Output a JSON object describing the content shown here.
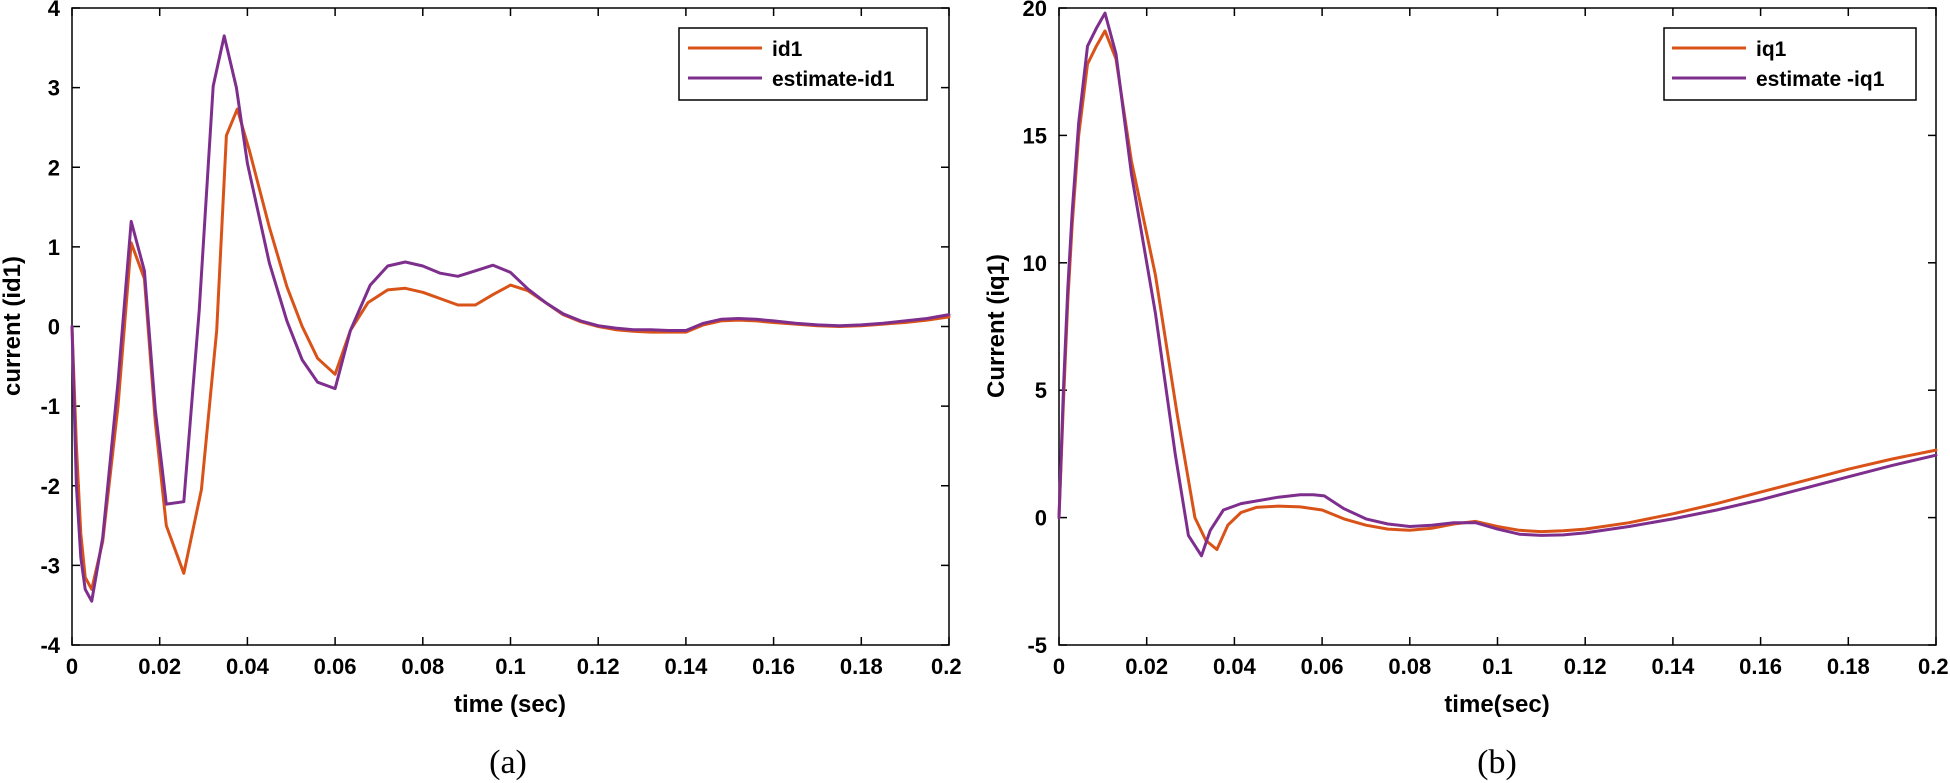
{
  "chart_data": [
    {
      "type": "line",
      "caption": "(a)",
      "xlabel": "time (sec)",
      "ylabel": "current (id1)",
      "xlim": [
        0,
        0.2
      ],
      "ylim": [
        -4,
        4
      ],
      "xticks": [
        0,
        0.02,
        0.04,
        0.06,
        0.08,
        0.1,
        0.12,
        0.14,
        0.16,
        0.18,
        0.2
      ],
      "xtick_labels": [
        "0",
        "0.02",
        "0.04",
        "0.06",
        "0.08",
        "0.1",
        "0.12",
        "0.14",
        "0.16",
        "0.18",
        "0.2"
      ],
      "yticks": [
        -4,
        -3,
        -2,
        -1,
        0,
        1,
        2,
        3,
        4
      ],
      "ytick_labels": [
        "-4",
        "-3",
        "-2",
        "-1",
        "0",
        "1",
        "2",
        "3",
        "4"
      ],
      "legend_position": "top-right",
      "series": [
        {
          "name": "id1",
          "color": "#D95319",
          "x": [
            0,
            0.001,
            0.002,
            0.003,
            0.0045,
            0.007,
            0.0105,
            0.0135,
            0.0165,
            0.019,
            0.0215,
            0.0255,
            0.0295,
            0.033,
            0.0352,
            0.0377,
            0.0405,
            0.045,
            0.049,
            0.0525,
            0.056,
            0.06,
            0.0635,
            0.0675,
            0.072,
            0.076,
            0.08,
            0.084,
            0.088,
            0.092,
            0.096,
            0.1,
            0.104,
            0.108,
            0.112,
            0.116,
            0.12,
            0.124,
            0.128,
            0.132,
            0.136,
            0.14,
            0.144,
            0.148,
            0.152,
            0.156,
            0.16,
            0.165,
            0.17,
            0.175,
            0.18,
            0.185,
            0.19,
            0.195,
            0.2
          ],
          "y": [
            0,
            -1.5,
            -2.6,
            -3.15,
            -3.3,
            -2.7,
            -1.0,
            1.05,
            0.6,
            -1.2,
            -2.5,
            -3.1,
            -2.05,
            -0.05,
            2.4,
            2.73,
            2.2,
            1.25,
            0.5,
            0.0,
            -0.4,
            -0.6,
            -0.05,
            0.3,
            0.46,
            0.48,
            0.43,
            0.35,
            0.27,
            0.27,
            0.4,
            0.52,
            0.45,
            0.3,
            0.15,
            0.06,
            0.0,
            -0.04,
            -0.06,
            -0.07,
            -0.07,
            -0.07,
            0.02,
            0.07,
            0.08,
            0.07,
            0.05,
            0.03,
            0.01,
            0.0,
            0.01,
            0.03,
            0.05,
            0.08,
            0.12
          ]
        },
        {
          "name": "estimate-id1",
          "color": "#7E2F8E",
          "x": [
            0,
            0.001,
            0.002,
            0.003,
            0.0045,
            0.007,
            0.0105,
            0.0135,
            0.0165,
            0.019,
            0.0215,
            0.0255,
            0.029,
            0.0322,
            0.0347,
            0.0375,
            0.04,
            0.045,
            0.049,
            0.0525,
            0.056,
            0.06,
            0.0635,
            0.068,
            0.072,
            0.076,
            0.08,
            0.084,
            0.088,
            0.092,
            0.096,
            0.1,
            0.104,
            0.108,
            0.112,
            0.116,
            0.12,
            0.124,
            0.128,
            0.132,
            0.136,
            0.14,
            0.144,
            0.148,
            0.152,
            0.156,
            0.16,
            0.165,
            0.17,
            0.175,
            0.18,
            0.185,
            0.19,
            0.195,
            0.2
          ],
          "y": [
            0,
            -2.0,
            -2.9,
            -3.3,
            -3.45,
            -2.65,
            -0.7,
            1.32,
            0.7,
            -1.05,
            -2.23,
            -2.2,
            0.2,
            3.02,
            3.65,
            3.0,
            2.05,
            0.8,
            0.07,
            -0.42,
            -0.7,
            -0.78,
            -0.05,
            0.52,
            0.76,
            0.81,
            0.76,
            0.67,
            0.63,
            0.7,
            0.77,
            0.68,
            0.47,
            0.3,
            0.16,
            0.07,
            0.01,
            -0.02,
            -0.04,
            -0.04,
            -0.05,
            -0.05,
            0.04,
            0.09,
            0.1,
            0.09,
            0.07,
            0.04,
            0.02,
            0.01,
            0.02,
            0.04,
            0.07,
            0.1,
            0.15
          ]
        }
      ]
    },
    {
      "type": "line",
      "caption": "(b)",
      "xlabel": "time(sec)",
      "ylabel": "Current (iq1)",
      "xlim": [
        0,
        0.2
      ],
      "ylim": [
        -5,
        20
      ],
      "xticks": [
        0,
        0.02,
        0.04,
        0.06,
        0.08,
        0.1,
        0.12,
        0.14,
        0.16,
        0.18,
        0.2
      ],
      "xtick_labels": [
        "0",
        "0.02",
        "0.04",
        "0.06",
        "0.08",
        "0.1",
        "0.12",
        "0.14",
        "0.16",
        "0.18",
        "0.2"
      ],
      "yticks": [
        -5,
        0,
        5,
        10,
        15,
        20
      ],
      "ytick_labels": [
        "-5",
        "0",
        "5",
        "10",
        "15",
        "20"
      ],
      "legend_position": "top-right",
      "series": [
        {
          "name": "iq1",
          "color": "#D95319",
          "x": [
            0,
            0.001,
            0.002,
            0.003,
            0.0045,
            0.0065,
            0.0085,
            0.0105,
            0.013,
            0.0165,
            0.022,
            0.027,
            0.031,
            0.0335,
            0.036,
            0.0385,
            0.0415,
            0.045,
            0.05,
            0.055,
            0.06,
            0.065,
            0.07,
            0.075,
            0.08,
            0.085,
            0.09,
            0.095,
            0.1,
            0.105,
            0.11,
            0.115,
            0.12,
            0.13,
            0.14,
            0.15,
            0.16,
            0.17,
            0.18,
            0.19,
            0.2
          ],
          "y": [
            0,
            4.5,
            8.5,
            11.5,
            15.0,
            17.8,
            18.5,
            19.1,
            18.0,
            14.0,
            9.5,
            4.0,
            0.0,
            -0.9,
            -1.25,
            -0.3,
            0.2,
            0.4,
            0.45,
            0.42,
            0.3,
            -0.05,
            -0.3,
            -0.45,
            -0.5,
            -0.42,
            -0.25,
            -0.15,
            -0.35,
            -0.5,
            -0.55,
            -0.52,
            -0.45,
            -0.2,
            0.15,
            0.55,
            1.0,
            1.45,
            1.9,
            2.3,
            2.65
          ]
        },
        {
          "name": "estimate -iq1",
          "color": "#7E2F8E",
          "x": [
            0,
            0.001,
            0.002,
            0.003,
            0.0045,
            0.0065,
            0.0085,
            0.0105,
            0.013,
            0.0165,
            0.022,
            0.0265,
            0.0295,
            0.0325,
            0.0345,
            0.0375,
            0.0415,
            0.045,
            0.05,
            0.055,
            0.058,
            0.0605,
            0.065,
            0.07,
            0.075,
            0.08,
            0.085,
            0.09,
            0.095,
            0.1,
            0.105,
            0.11,
            0.115,
            0.12,
            0.13,
            0.14,
            0.15,
            0.16,
            0.17,
            0.18,
            0.19,
            0.2
          ],
          "y": [
            0,
            5.0,
            9.0,
            12.0,
            15.5,
            18.5,
            19.2,
            19.8,
            18.2,
            13.5,
            8.0,
            2.5,
            -0.7,
            -1.5,
            -0.5,
            0.3,
            0.55,
            0.65,
            0.8,
            0.9,
            0.9,
            0.85,
            0.35,
            -0.05,
            -0.25,
            -0.35,
            -0.3,
            -0.2,
            -0.2,
            -0.45,
            -0.65,
            -0.7,
            -0.68,
            -0.6,
            -0.35,
            -0.05,
            0.3,
            0.7,
            1.15,
            1.6,
            2.05,
            2.45
          ]
        }
      ]
    }
  ]
}
